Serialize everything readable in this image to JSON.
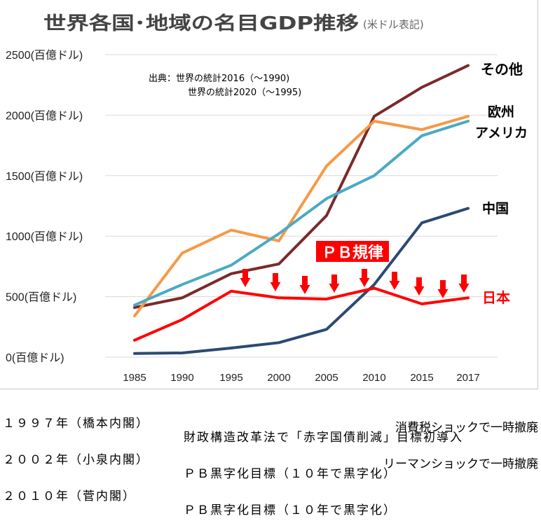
{
  "chart_data": {
    "type": "line",
    "title": "世界各国･地域の名目GDP推移",
    "subtitle": "(米ドル表記)",
    "source_label": "出典：世界の統計2016（〜1990)",
    "source_line2": "世界の統計2020（〜1995)",
    "x": [
      "1985",
      "1990",
      "1995",
      "2000",
      "2005",
      "2010",
      "2015",
      "2017"
    ],
    "yticks": [
      "0(百億ドル)",
      "500(百億ドル)",
      "1000(百億ドル)",
      "1500(百億ドル)",
      "2000(百億ドル)",
      "2500(百億ドル)"
    ],
    "ylim": [
      0,
      2500
    ],
    "series": [
      {
        "name": "その他",
        "color": "#7b2a2a",
        "values": [
          410,
          490,
          690,
          770,
          1170,
          1990,
          2230,
          2410
        ]
      },
      {
        "name": "欧州",
        "color": "#f59a46",
        "values": [
          340,
          860,
          1050,
          960,
          1580,
          1950,
          1880,
          1990
        ]
      },
      {
        "name": "アメリカ",
        "color": "#4aaac6",
        "values": [
          430,
          600,
          760,
          1020,
          1310,
          1500,
          1830,
          1950
        ]
      },
      {
        "name": "中国",
        "color": "#2b4a72",
        "values": [
          30,
          35,
          75,
          120,
          230,
          600,
          1110,
          1230
        ]
      },
      {
        "name": "日本",
        "color": "#ff0000",
        "values": [
          140,
          310,
          545,
          490,
          480,
          570,
          440,
          490
        ]
      }
    ],
    "annotation": "ＰＢ規律",
    "grid": true,
    "legend": "direct labels at line ends"
  },
  "notes": [
    {
      "c1": "１９９７年（橋本内閣）",
      "c2": "財政構造改革法で「赤字国債削減」目標初導入"
    },
    {
      "right": "消費税ショックで一時撤廃"
    },
    {
      "c1": "２００２年（小泉内閣）",
      "c2": "ＰＢ黒字化目標（１０年で黒字化）"
    },
    {
      "right": "リーマンショックで一時撤廃"
    },
    {
      "c1": "２０１０年（菅内閣）",
      "c2": "ＰＢ黒字化目標（１０年で黒字化）"
    }
  ],
  "colors": {
    "grid": "#d9d9d9",
    "arrow": "#ff0000",
    "title": "#444444",
    "axis_text": "#222222"
  }
}
